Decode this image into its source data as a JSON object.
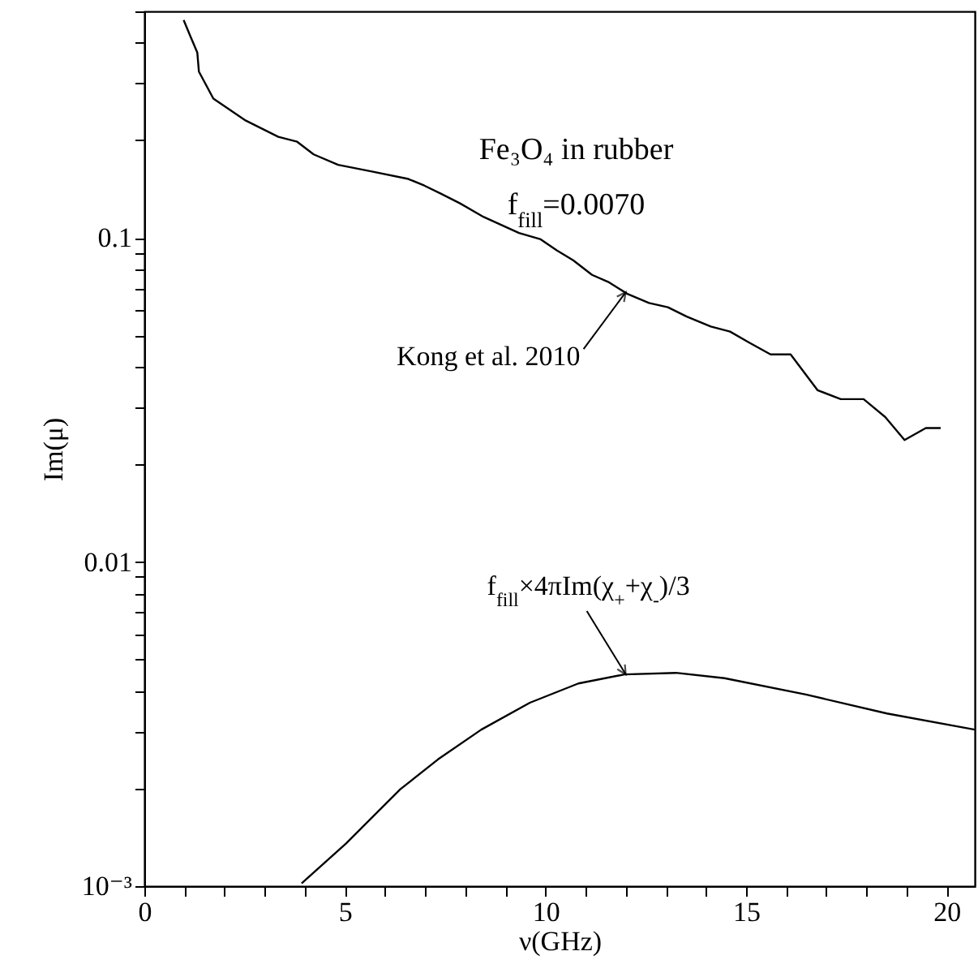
{
  "chart_data": {
    "type": "line",
    "xlabel": "ν(GHz)",
    "ylabel": "Im(μ)",
    "log": "y",
    "xlim": [
      0,
      20.7
    ],
    "ylim": [
      0.001,
      0.5
    ],
    "xticks": [
      0,
      {
        "value": 1,
        "label": null
      },
      {
        "value": 2,
        "label": null
      },
      {
        "value": 3,
        "label": null
      },
      {
        "value": 4,
        "label": null
      },
      5,
      {
        "value": 6,
        "label": null
      },
      {
        "value": 7,
        "label": null
      },
      {
        "value": 8,
        "label": null
      },
      {
        "value": 9,
        "label": null
      },
      10,
      {
        "value": 11,
        "label": null
      },
      {
        "value": 12,
        "label": null
      },
      {
        "value": 13,
        "label": null
      },
      {
        "value": 14,
        "label": null
      },
      15,
      {
        "value": 16,
        "label": null
      },
      {
        "value": 17,
        "label": null
      },
      {
        "value": 18,
        "label": null
      },
      {
        "value": 19,
        "label": null
      },
      20
    ],
    "yticks": [
      {
        "value": 0.001,
        "label": "10⁻³"
      },
      {
        "value": 0.002,
        "label": null
      },
      {
        "value": 0.003,
        "label": null
      },
      {
        "value": 0.004,
        "label": null
      },
      {
        "value": 0.005,
        "label": null
      },
      {
        "value": 0.006,
        "label": null
      },
      {
        "value": 0.007,
        "label": null
      },
      {
        "value": 0.008,
        "label": null
      },
      {
        "value": 0.009,
        "label": null
      },
      0.01,
      {
        "value": 0.02,
        "label": null
      },
      {
        "value": 0.03,
        "label": null
      },
      {
        "value": 0.04,
        "label": null
      },
      {
        "value": 0.05,
        "label": null
      },
      {
        "value": 0.06,
        "label": null
      },
      {
        "value": 0.07,
        "label": null
      },
      {
        "value": 0.08,
        "label": null
      },
      {
        "value": 0.09,
        "label": null
      },
      0.1,
      {
        "value": 0.2,
        "label": null
      },
      {
        "value": 0.3,
        "label": null
      },
      {
        "value": 0.4,
        "label": null
      },
      {
        "value": 0.5,
        "label": null
      }
    ],
    "series": [
      {
        "color": "#000000",
        "x": [
          0.98,
          1.15,
          1.32,
          1.36,
          1.72,
          2.53,
          3.34,
          3.81,
          4.22,
          4.83,
          5.7,
          6.58,
          6.98,
          7.39,
          7.86,
          8.46,
          9.34,
          9.88,
          10.28,
          10.69,
          11.16,
          11.56,
          12.04,
          12.58,
          13.05,
          13.52,
          14.12,
          14.6,
          15.07,
          15.61,
          16.11,
          16.78,
          17.36,
          17.93,
          18.47,
          18.95,
          19.48,
          19.85
        ],
        "values": [
          0.47,
          0.418,
          0.373,
          0.326,
          0.269,
          0.23,
          0.205,
          0.198,
          0.181,
          0.168,
          0.16,
          0.152,
          0.145,
          0.137,
          0.128,
          0.116,
          0.1035,
          0.099,
          0.0915,
          0.0853,
          0.0769,
          0.0732,
          0.0672,
          0.063,
          0.0611,
          0.0572,
          0.0533,
          0.0514,
          0.0476,
          0.0437,
          0.0437,
          0.0339,
          0.0318,
          0.0318,
          0.028,
          0.0238,
          0.0259,
          0.0259
        ]
      },
      {
        "color": "#000000",
        "x": [
          3.92,
          5.03,
          6.38,
          7.32,
          8.4,
          9.61,
          10.82,
          11.97,
          13.25,
          14.46,
          16.49,
          18.51,
          20.7
        ],
        "values": [
          0.00102,
          0.001355,
          0.00199,
          0.00246,
          0.00304,
          0.00368,
          0.00422,
          0.0045,
          0.00455,
          0.00438,
          0.0039,
          0.00341,
          0.00304
        ]
      }
    ],
    "annotations": [
      "Fe₃O₄ in rubber",
      "f$_{fill}$=0.0070",
      {
        "text": "Kong et al. 2010",
        "x": 12.0,
        "y": 0.068
      },
      {
        "text": "f$_{fill}$×4πIm(χ$_{+}$+χ$_{-}$)/3",
        "x": 12.0,
        "y": 0.0045
      }
    ]
  }
}
